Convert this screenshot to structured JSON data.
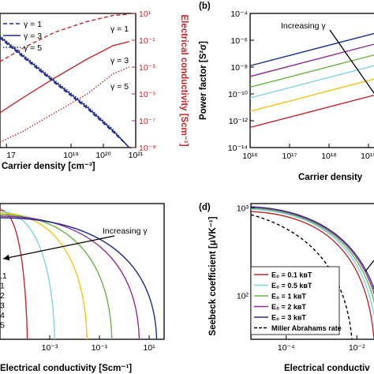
{
  "chart_data": [
    {
      "panel": "",
      "type": "line",
      "xscale": "log",
      "yscale_right": "log",
      "xlabel": "Carrier density [cm⁻³]",
      "ylabel_right": "Electrical conductivity [Scm⁻¹]",
      "x_tick_labels": [
        "17",
        "10¹⁹",
        "10²⁰",
        "10²¹"
      ],
      "y_right_tick_labels": [
        "10¹",
        "10⁻¹",
        "10⁻³",
        "10⁻⁵",
        "10⁻⁷",
        "10⁻⁹"
      ],
      "xlim_log": [
        16.8,
        21
      ],
      "y_right_lim_log": [
        -9,
        1
      ],
      "legend": [
        {
          "label": "γ = 1",
          "style": "dashed"
        },
        {
          "label": "γ = 3",
          "style": "solid"
        },
        {
          "label": "γ = 5",
          "style": "dotted"
        }
      ],
      "annotations": [
        "γ = 1",
        "γ = 3",
        "γ = 5"
      ],
      "series": [
        {
          "axis": "right",
          "color": "#c0282c",
          "style": "dashed",
          "x_log": [
            16.8,
            17.5,
            18.5,
            19.5,
            20.3,
            20.8
          ],
          "y_log": [
            -2.6,
            -1.6,
            -0.4,
            0.4,
            0.85,
            0.95
          ]
        },
        {
          "axis": "right",
          "color": "#c0282c",
          "style": "solid",
          "x_log": [
            16.8,
            17.5,
            18.5,
            19.5,
            20.3,
            20.8
          ],
          "y_log": [
            -6.4,
            -5.3,
            -3.8,
            -2.4,
            -1.4,
            -1.1
          ]
        },
        {
          "axis": "right",
          "color": "#c0282c",
          "style": "dotted",
          "x_log": [
            16.8,
            17.5,
            18.5,
            19.5,
            20.3,
            20.8
          ],
          "y_log": [
            -8.6,
            -7.8,
            -6.4,
            -5.0,
            -3.5,
            -3.0
          ]
        },
        {
          "axis": "left",
          "color": "#1f2f8f",
          "style": "dashed",
          "x_log": [
            16.8,
            17.5,
            18.5,
            19.5,
            20.3,
            20.8
          ],
          "y_log": [
            -0.85,
            -2.25,
            -4.2,
            -6.1,
            -7.85,
            -9.0
          ]
        },
        {
          "axis": "left",
          "color": "#1f2f8f",
          "style": "solid",
          "x_log": [
            16.8,
            17.5,
            18.5,
            19.5,
            20.3,
            20.8
          ],
          "y_log": [
            -0.75,
            -2.15,
            -4.1,
            -6.0,
            -7.75,
            -9.0
          ]
        },
        {
          "axis": "left",
          "color": "#1f2f8f",
          "style": "dotted",
          "x_log": [
            16.8,
            17.5,
            18.5,
            19.5,
            20.3,
            20.8
          ],
          "y_log": [
            -0.65,
            -2.05,
            -4.0,
            -5.9,
            -7.65,
            -9.0
          ]
        }
      ]
    },
    {
      "panel": "(b)",
      "type": "line",
      "xscale": "log",
      "yscale": "log",
      "xlabel": "Carrier density",
      "ylabel": "Power factor [S²σ]",
      "x_tick_labels": [
        "10¹⁶",
        "10¹⁷",
        "10¹⁸",
        "10¹⁹"
      ],
      "y_tick_labels": [
        "10⁻⁴",
        "10⁻⁶",
        "10⁻⁸",
        "10⁻¹⁰",
        "10⁻¹²",
        "10⁻¹⁴"
      ],
      "xlim_log": [
        16,
        19.4
      ],
      "ylim_log": [
        -14,
        -4
      ],
      "annotations": [
        "Increasing γ"
      ],
      "series": [
        {
          "color": "#1f2f8f",
          "x_log": [
            16,
            19.4
          ],
          "y_log": [
            -7.9,
            -5.3
          ]
        },
        {
          "color": "#8e2f8f",
          "x_log": [
            16,
            19.4
          ],
          "y_log": [
            -8.7,
            -6.1
          ]
        },
        {
          "color": "#6ab344",
          "x_log": [
            16,
            19.4
          ],
          "y_log": [
            -9.5,
            -6.9
          ]
        },
        {
          "color": "#7fd3e8",
          "x_log": [
            16,
            19.4
          ],
          "y_log": [
            -10.3,
            -7.7
          ]
        },
        {
          "color": "#f3c413",
          "x_log": [
            16,
            19.4
          ],
          "y_log": [
            -11.3,
            -8.7
          ]
        },
        {
          "color": "#c0282c",
          "x_log": [
            16,
            19.4
          ],
          "y_log": [
            -12.5,
            -9.9
          ]
        }
      ]
    },
    {
      "panel": "",
      "type": "line",
      "xscale": "log",
      "xlabel": "Electrical conductivity [Scm⁻¹]",
      "x_tick_labels": [
        "10⁻³",
        "10⁻¹",
        "10¹"
      ],
      "xlim_log": [
        -5,
        1.6
      ],
      "legend_fragments": [
        ".1",
        "1",
        "2",
        "3",
        "4",
        "5"
      ],
      "annotations": [
        "Increasing γ"
      ],
      "series": [
        {
          "color": "#c0282c",
          "x_end_log": -3.9
        },
        {
          "color": "#7fd3e8",
          "x_end_log": -2.8
        },
        {
          "color": "#f3c413",
          "x_end_log": -1.5
        },
        {
          "color": "#6ab344",
          "x_end_log": -0.5
        },
        {
          "color": "#8e2f8f",
          "x_end_log": 0.6
        },
        {
          "color": "#1f2f8f",
          "x_end_log": 1.3
        }
      ]
    },
    {
      "panel": "(d)",
      "type": "line",
      "xscale": "log",
      "yscale": "log",
      "xlabel": "Electrical conductiv",
      "ylabel": "Seebeck coefficient [μVK⁻¹]",
      "x_tick_labels": [
        "10⁻⁴",
        "10⁻²"
      ],
      "y_tick_labels": [
        "10³",
        "10²"
      ],
      "xlim_log": [
        -5,
        -1.2
      ],
      "ylim_log": [
        1.5,
        3.05
      ],
      "legend": [
        {
          "label": "E₀ = 0.1 kʙT",
          "color": "#c0282c"
        },
        {
          "label": "E₀ = 0.5 kʙT",
          "color": "#7fd3e8"
        },
        {
          "label": "E₀ = 1 kʙT",
          "color": "#6ab344"
        },
        {
          "label": "E₀ = 2 kʙT",
          "color": "#8e2f8f"
        },
        {
          "label": "E₀ = 3 kʙT",
          "color": "#1f2f8f"
        },
        {
          "label": "Miller Abrahams rate",
          "color": "#000000",
          "style": "dashed"
        }
      ]
    }
  ]
}
